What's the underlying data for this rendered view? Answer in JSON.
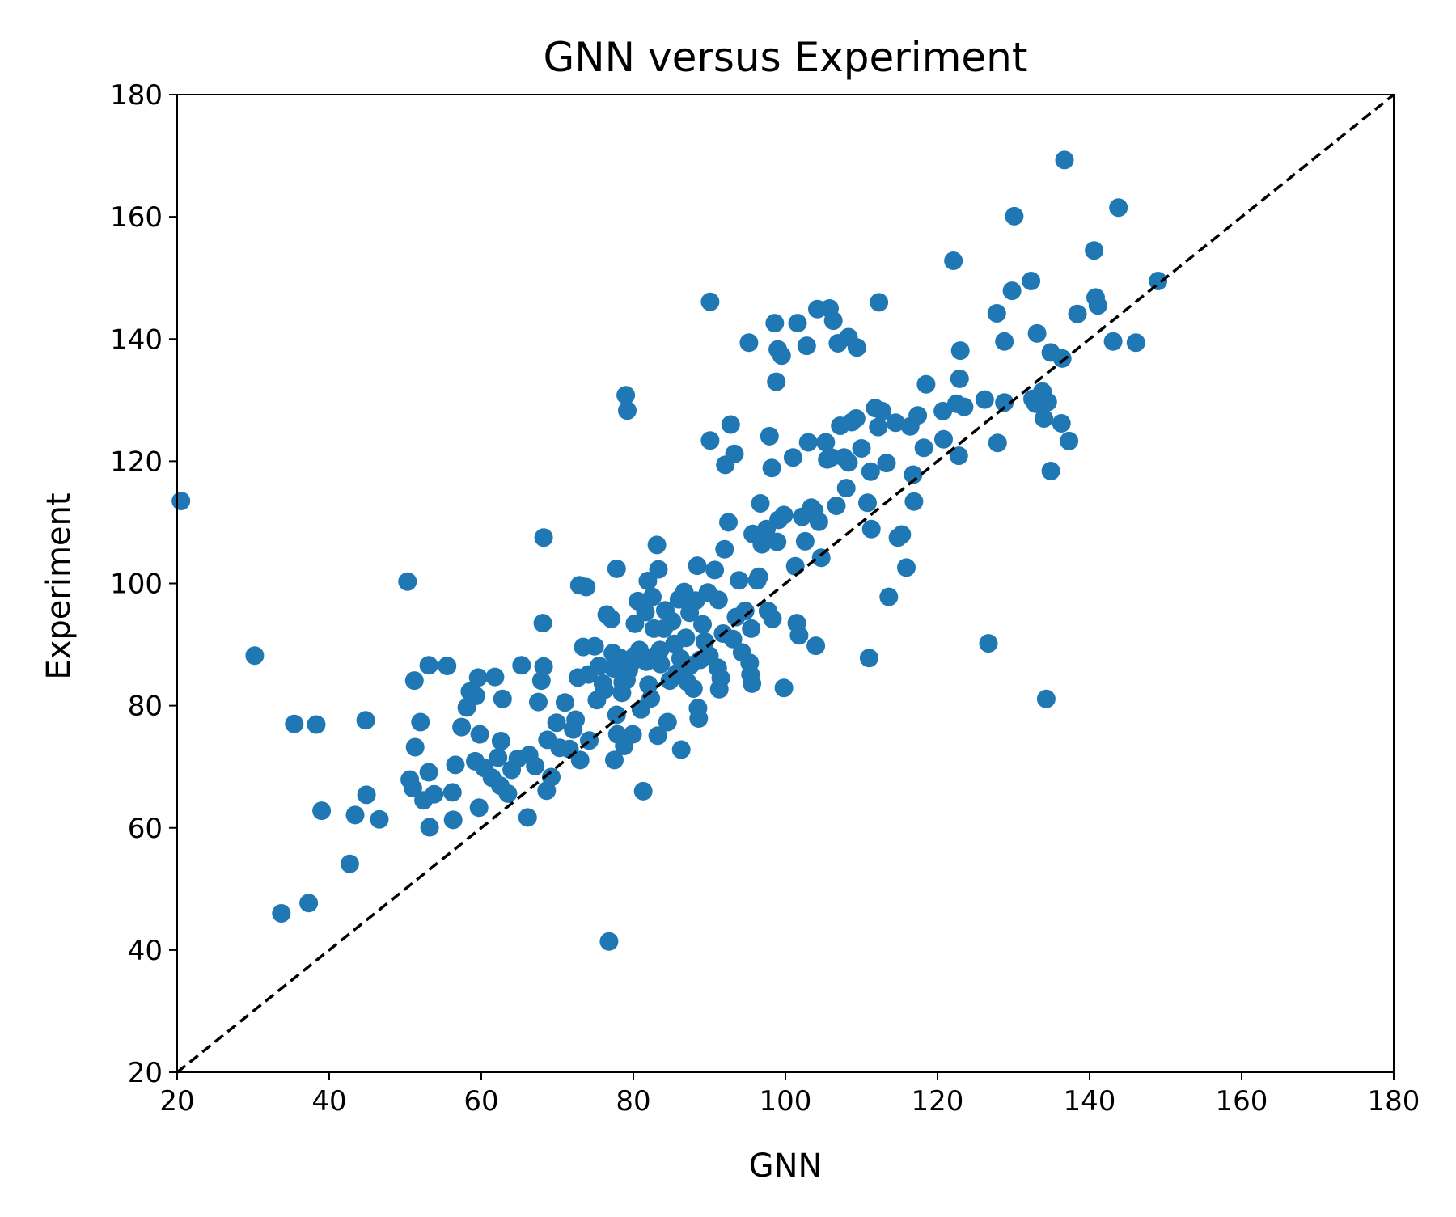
{
  "chart_data": {
    "type": "scatter",
    "title": "GNN versus Experiment",
    "xlabel": "GNN",
    "ylabel": "Experiment",
    "xlim": [
      20,
      180
    ],
    "ylim": [
      20,
      180
    ],
    "xticks": [
      20,
      40,
      60,
      80,
      100,
      120,
      140,
      160,
      180
    ],
    "yticks": [
      20,
      40,
      60,
      80,
      100,
      120,
      140,
      160,
      180
    ],
    "grid": false,
    "marker_color": "#1f77b4",
    "reference_line": {
      "from": [
        20,
        20
      ],
      "to": [
        180,
        180
      ],
      "style": "dashed",
      "color": "#000000"
    },
    "points": [
      [
        20.5,
        113.5
      ],
      [
        30.2,
        88.2
      ],
      [
        33.7,
        46
      ],
      [
        35.4,
        77
      ],
      [
        37.3,
        47.7
      ],
      [
        38.3,
        76.9
      ],
      [
        39,
        62.8
      ],
      [
        42.7,
        54.1
      ],
      [
        43.4,
        62.1
      ],
      [
        44.8,
        77.6
      ],
      [
        44.9,
        65.4
      ],
      [
        46.6,
        61.4
      ],
      [
        50.3,
        100.3
      ],
      [
        50.6,
        67.9
      ],
      [
        51,
        66.5
      ],
      [
        51.2,
        84.1
      ],
      [
        51.3,
        73.2
      ],
      [
        52,
        77.3
      ],
      [
        52.4,
        64.5
      ],
      [
        53.1,
        69.1
      ],
      [
        53.1,
        86.6
      ],
      [
        53.2,
        60.1
      ],
      [
        53.8,
        65.5
      ],
      [
        55.5,
        86.5
      ],
      [
        56.2,
        65.8
      ],
      [
        56.3,
        61.3
      ],
      [
        56.6,
        70.3
      ],
      [
        57.4,
        76.5
      ],
      [
        58.1,
        79.7
      ],
      [
        58.5,
        82.3
      ],
      [
        59.2,
        70.9
      ],
      [
        59.3,
        81.6
      ],
      [
        59.6,
        84.6
      ],
      [
        59.7,
        63.3
      ],
      [
        59.8,
        75.3
      ],
      [
        60.4,
        69.8
      ],
      [
        61.4,
        68.2
      ],
      [
        61.8,
        84.7
      ],
      [
        62.2,
        71.5
      ],
      [
        62.5,
        66.9
      ],
      [
        62.6,
        74.2
      ],
      [
        62.8,
        81.1
      ],
      [
        63.5,
        65.6
      ],
      [
        64,
        69.5
      ],
      [
        64.8,
        71.3
      ],
      [
        65.3,
        86.6
      ],
      [
        66.1,
        61.7
      ],
      [
        66.3,
        71.9
      ],
      [
        67.1,
        70.1
      ],
      [
        67.5,
        80.6
      ],
      [
        67.9,
        84.1
      ],
      [
        68.1,
        93.5
      ],
      [
        68.2,
        107.5
      ],
      [
        68.2,
        86.4
      ],
      [
        68.6,
        66.1
      ],
      [
        68.7,
        74.4
      ],
      [
        69.2,
        68.3
      ],
      [
        69.9,
        77.2
      ],
      [
        70.3,
        73.1
      ],
      [
        71,
        80.5
      ],
      [
        71.6,
        72.9
      ],
      [
        72.1,
        76.1
      ],
      [
        72.4,
        77.7
      ],
      [
        72.7,
        84.6
      ],
      [
        72.9,
        99.7
      ],
      [
        73,
        71.1
      ],
      [
        73.4,
        89.6
      ],
      [
        73.8,
        99.4
      ],
      [
        74.1,
        85.1
      ],
      [
        74.2,
        74.3
      ],
      [
        74.9,
        89.7
      ],
      [
        75.2,
        80.9
      ],
      [
        75.5,
        86.5
      ],
      [
        76,
        83.6
      ],
      [
        76.2,
        82.6
      ],
      [
        76.5,
        94.9
      ],
      [
        76.8,
        41.4
      ],
      [
        77.1,
        94.2
      ],
      [
        77.3,
        88.6
      ],
      [
        77.4,
        86.1
      ],
      [
        77.5,
        71.1
      ],
      [
        77.8,
        102.4
      ],
      [
        77.8,
        78.5
      ],
      [
        77.9,
        75.3
      ],
      [
        78.3,
        87.8
      ],
      [
        78.5,
        82.1
      ],
      [
        78.6,
        83.8
      ],
      [
        78.8,
        73.4
      ],
      [
        79,
        130.8
      ],
      [
        79.1,
        84.2
      ],
      [
        79.2,
        128.3
      ],
      [
        79.4,
        85.8
      ],
      [
        79.9,
        87.2
      ],
      [
        79.9,
        75.3
      ],
      [
        80.2,
        93.4
      ],
      [
        80.2,
        88.2
      ],
      [
        80.6,
        97.1
      ],
      [
        80.8,
        89.1
      ],
      [
        81,
        79.4
      ],
      [
        81.3,
        66
      ],
      [
        81.6,
        95.3
      ],
      [
        81.7,
        87.2
      ],
      [
        81.9,
        100.4
      ],
      [
        82,
        83.4
      ],
      [
        82.3,
        81.2
      ],
      [
        82.5,
        97.8
      ],
      [
        82.7,
        92.6
      ],
      [
        82.8,
        88.1
      ],
      [
        83.1,
        106.3
      ],
      [
        83.2,
        75.1
      ],
      [
        83.3,
        102.3
      ],
      [
        83.5,
        89.1
      ],
      [
        83.6,
        86.8
      ],
      [
        84,
        92.6
      ],
      [
        84.2,
        95.6
      ],
      [
        84.5,
        77.3
      ],
      [
        84.8,
        84.1
      ],
      [
        85.1,
        93.8
      ],
      [
        85.4,
        90.1
      ],
      [
        85.7,
        85.3
      ],
      [
        86,
        97.4
      ],
      [
        86.2,
        87.7
      ],
      [
        86.3,
        72.8
      ],
      [
        86.7,
        98.6
      ],
      [
        86.9,
        91.1
      ],
      [
        87.1,
        83.9
      ],
      [
        87.4,
        95.2
      ],
      [
        87.5,
        86.6
      ],
      [
        87.9,
        82.8
      ],
      [
        88.2,
        97.2
      ],
      [
        88.4,
        102.9
      ],
      [
        88.5,
        79.6
      ],
      [
        88.6,
        77.9
      ],
      [
        88.8,
        87.5
      ],
      [
        89.1,
        93.3
      ],
      [
        89.4,
        90.5
      ],
      [
        89.8,
        98.5
      ],
      [
        90,
        88.2
      ],
      [
        90.1,
        123.4
      ],
      [
        90.1,
        146.1
      ],
      [
        90.7,
        102.2
      ],
      [
        91.1,
        86.2
      ],
      [
        91.2,
        97.3
      ],
      [
        91.3,
        82.7
      ],
      [
        91.5,
        84.5
      ],
      [
        91.8,
        91.8
      ],
      [
        92,
        105.6
      ],
      [
        92.1,
        119.4
      ],
      [
        92.5,
        110
      ],
      [
        92.8,
        126
      ],
      [
        93.1,
        90.9
      ],
      [
        93.3,
        121.2
      ],
      [
        93.5,
        94.5
      ],
      [
        93.9,
        100.5
      ],
      [
        94.3,
        88.7
      ],
      [
        94.7,
        95.5
      ],
      [
        95.2,
        139.4
      ],
      [
        95.3,
        87
      ],
      [
        95.4,
        85.1
      ],
      [
        95.5,
        92.6
      ],
      [
        95.6,
        83.6
      ],
      [
        95.7,
        108.1
      ],
      [
        96.3,
        100.5
      ],
      [
        96.5,
        101.1
      ],
      [
        96.7,
        113.1
      ],
      [
        96.9,
        106.4
      ],
      [
        97.5,
        108.9
      ],
      [
        97.7,
        95.5
      ],
      [
        97.9,
        124.1
      ],
      [
        98.2,
        118.9
      ],
      [
        98.3,
        94.2
      ],
      [
        98.6,
        142.6
      ],
      [
        98.8,
        133
      ],
      [
        98.9,
        106.8
      ],
      [
        99,
        138.3
      ],
      [
        99.1,
        110.4
      ],
      [
        99.5,
        137.3
      ],
      [
        99.8,
        111.2
      ],
      [
        99.8,
        82.9
      ],
      [
        101,
        120.6
      ],
      [
        101.3,
        102.8
      ],
      [
        101.5,
        93.5
      ],
      [
        101.6,
        142.6
      ],
      [
        101.8,
        91.5
      ],
      [
        102.2,
        110.9
      ],
      [
        102.6,
        106.9
      ],
      [
        102.8,
        138.9
      ],
      [
        103,
        123.1
      ],
      [
        103.4,
        112.4
      ],
      [
        103.8,
        111.9
      ],
      [
        104,
        89.8
      ],
      [
        104.2,
        144.9
      ],
      [
        104.4,
        110.1
      ],
      [
        104.7,
        104.2
      ],
      [
        105.3,
        123.1
      ],
      [
        105.5,
        120.3
      ],
      [
        105.8,
        145
      ],
      [
        106,
        120.6
      ],
      [
        106.3,
        143
      ],
      [
        106.7,
        112.7
      ],
      [
        106.9,
        139.3
      ],
      [
        107.2,
        125.8
      ],
      [
        107.7,
        120.6
      ],
      [
        108,
        115.6
      ],
      [
        108.3,
        140.3
      ],
      [
        108.3,
        119.8
      ],
      [
        108.7,
        126.4
      ],
      [
        109.3,
        127
      ],
      [
        109.4,
        138.6
      ],
      [
        110,
        122.1
      ],
      [
        110.8,
        113.2
      ],
      [
        111,
        87.8
      ],
      [
        111.2,
        118.3
      ],
      [
        111.3,
        108.9
      ],
      [
        111.8,
        128.7
      ],
      [
        112.2,
        125.6
      ],
      [
        112.3,
        146
      ],
      [
        112.7,
        128.2
      ],
      [
        113.3,
        119.7
      ],
      [
        113.6,
        97.8
      ],
      [
        114.5,
        126.3
      ],
      [
        114.8,
        107.5
      ],
      [
        115.3,
        108
      ],
      [
        115.9,
        102.6
      ],
      [
        116.4,
        125.7
      ],
      [
        116.8,
        117.8
      ],
      [
        116.9,
        113.4
      ],
      [
        117.4,
        127.5
      ],
      [
        118.2,
        122.2
      ],
      [
        118.5,
        132.6
      ],
      [
        120.7,
        128.2
      ],
      [
        120.8,
        123.6
      ],
      [
        122.1,
        152.8
      ],
      [
        122.5,
        129.4
      ],
      [
        122.8,
        120.9
      ],
      [
        122.9,
        133.5
      ],
      [
        123,
        138.1
      ],
      [
        123.5,
        128.9
      ],
      [
        126.2,
        130.1
      ],
      [
        126.7,
        90.2
      ],
      [
        127.8,
        144.2
      ],
      [
        127.9,
        123
      ],
      [
        128.8,
        129.6
      ],
      [
        128.8,
        139.6
      ],
      [
        129.8,
        147.9
      ],
      [
        130.1,
        160.1
      ],
      [
        132.3,
        149.5
      ],
      [
        132.5,
        130.2
      ],
      [
        132.9,
        129.4
      ],
      [
        133.1,
        140.9
      ],
      [
        133.8,
        131.4
      ],
      [
        134,
        127
      ],
      [
        134.3,
        81.1
      ],
      [
        134.5,
        129.7
      ],
      [
        134.9,
        137.8
      ],
      [
        134.9,
        118.4
      ],
      [
        136.3,
        126.2
      ],
      [
        136.4,
        136.8
      ],
      [
        136.7,
        169.3
      ],
      [
        137.3,
        123.3
      ],
      [
        138.4,
        144.1
      ],
      [
        140.6,
        154.5
      ],
      [
        140.8,
        146.8
      ],
      [
        141.1,
        145.5
      ],
      [
        143.1,
        139.6
      ],
      [
        143.8,
        161.5
      ],
      [
        146.1,
        139.4
      ],
      [
        149,
        149.5
      ]
    ]
  }
}
